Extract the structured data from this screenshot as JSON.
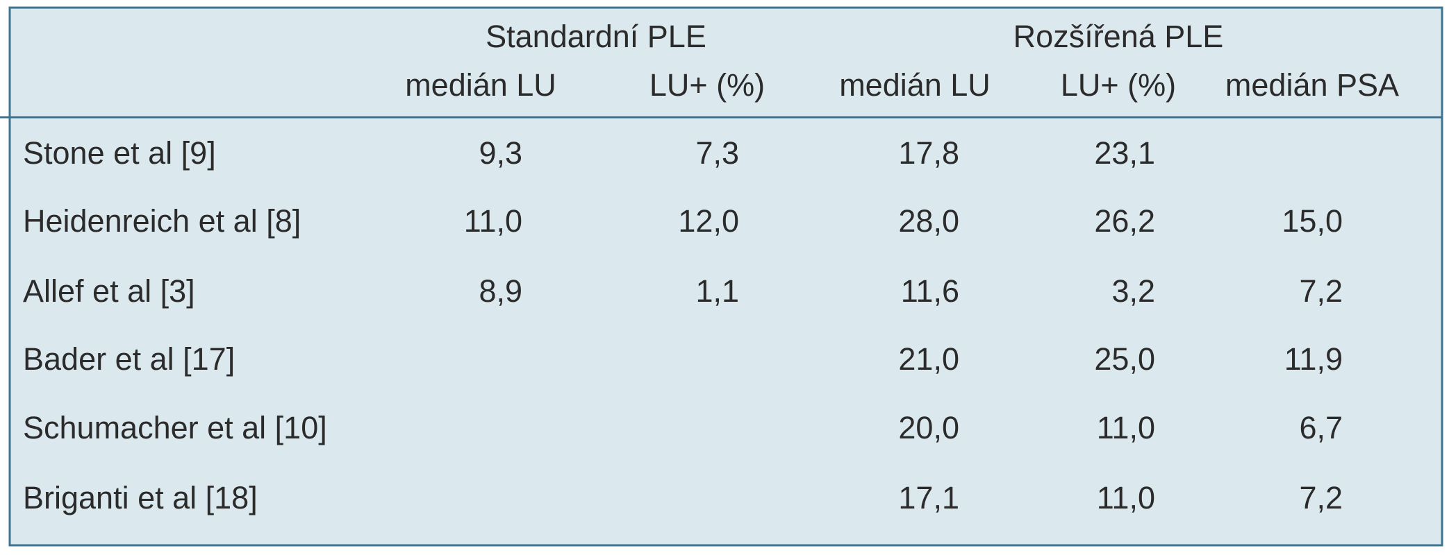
{
  "header": {
    "groups": [
      "Standardní PLE",
      "Rozšířená PLE"
    ],
    "columns": [
      "medián LU",
      "LU+ (%)",
      "medián LU",
      "LU+ (%)",
      "medián PSA"
    ]
  },
  "table": {
    "rows": [
      {
        "label": "Stone et al [9]",
        "cells": [
          "9,3",
          "7,3",
          "17,8",
          "23,1",
          null
        ]
      },
      {
        "label": "Heidenreich et al [8]",
        "cells": [
          "11,0",
          "12,0",
          "28,0",
          "26,2",
          "15,0"
        ]
      },
      {
        "label": "Allef et al [3]",
        "cells": [
          "8,9",
          "1,1",
          "11,6",
          "3,2",
          "7,2"
        ]
      },
      {
        "label": "Bader et al [17]",
        "cells": [
          null,
          null,
          "21,0",
          "25,0",
          "11,9"
        ]
      },
      {
        "label": "Schumacher et al [10]",
        "cells": [
          null,
          null,
          "20,0",
          "11,0",
          "6,7"
        ]
      },
      {
        "label": "Briganti et al [18]",
        "cells": [
          null,
          null,
          "17,1",
          "11,0",
          "7,2"
        ]
      }
    ]
  }
}
